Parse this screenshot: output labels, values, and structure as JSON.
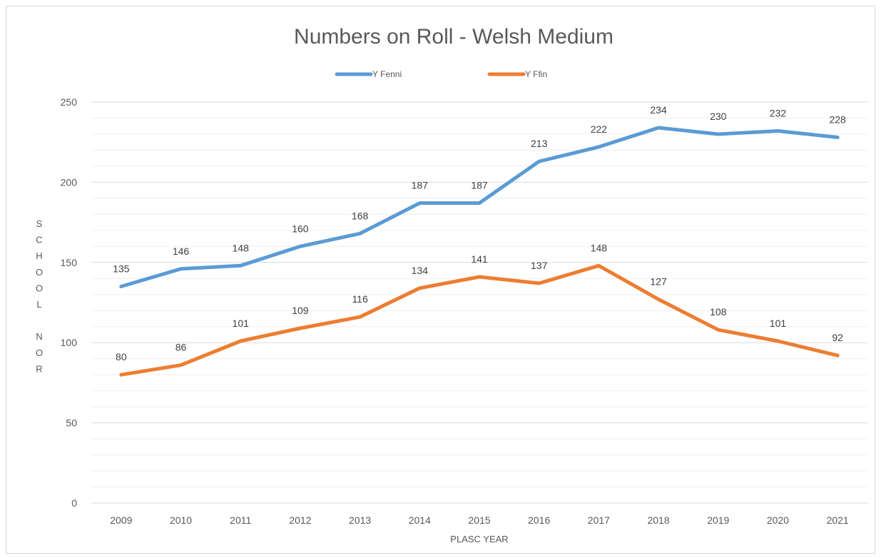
{
  "chart_data": {
    "type": "line",
    "title": "Numbers on Roll - Welsh Medium",
    "xlabel": "PLASC YEAR",
    "ylabel": "SCHOOL NOR",
    "ylabel_letters": [
      "S",
      "C",
      "H",
      "O",
      "O",
      "L",
      "",
      "N",
      "O",
      "R"
    ],
    "categories": [
      "2009",
      "2010",
      "2011",
      "2012",
      "2013",
      "2014",
      "2015",
      "2016",
      "2017",
      "2018",
      "2019",
      "2020",
      "2021"
    ],
    "ylim": [
      0,
      250
    ],
    "y_ticks": [
      0,
      50,
      100,
      150,
      200,
      250
    ],
    "grid": true,
    "legend_position": "top",
    "series": [
      {
        "name": "Y Fenni",
        "color": "#5b9bd5",
        "values": [
          135,
          146,
          148,
          160,
          168,
          187,
          187,
          213,
          222,
          234,
          230,
          232,
          228
        ]
      },
      {
        "name": "Y Ffin",
        "color": "#ed7d31",
        "values": [
          80,
          86,
          101,
          109,
          116,
          134,
          141,
          137,
          148,
          127,
          108,
          101,
          92
        ]
      }
    ]
  }
}
